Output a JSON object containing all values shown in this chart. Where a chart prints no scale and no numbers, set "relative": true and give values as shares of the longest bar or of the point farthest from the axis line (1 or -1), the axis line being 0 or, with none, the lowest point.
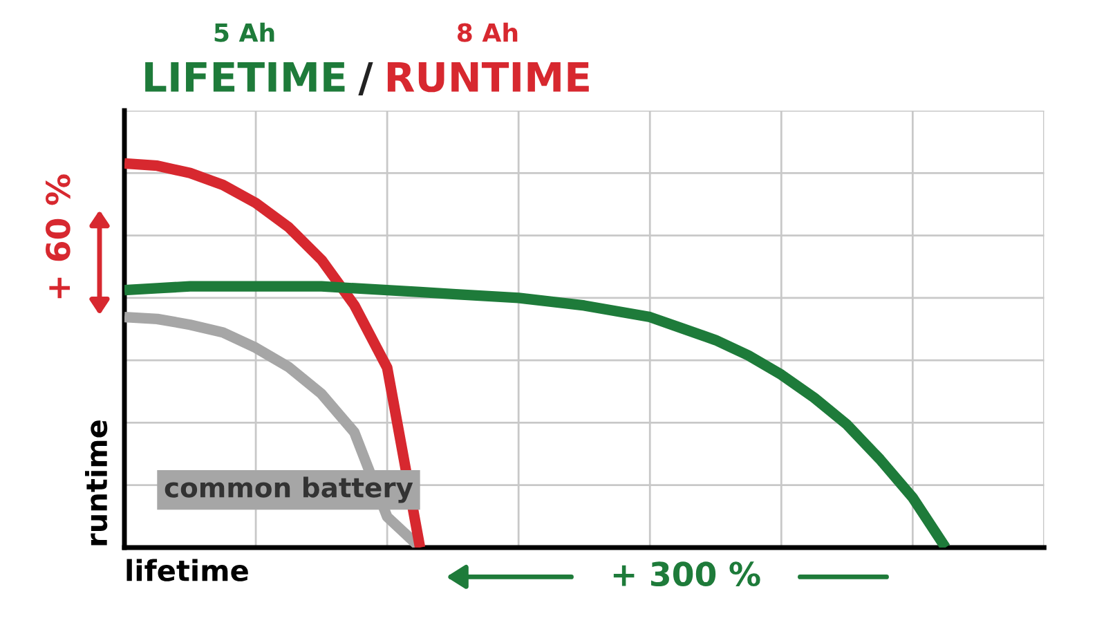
{
  "chart_data": {
    "type": "line",
    "relative": true,
    "title": "LIFETIME / RUNTIME",
    "xlabel": "lifetime",
    "ylabel": "runtime",
    "categories": [
      null,
      null,
      null,
      null,
      null,
      null,
      null,
      null,
      null,
      null,
      null,
      null,
      null,
      null,
      null,
      null,
      null,
      null,
      null,
      null,
      null,
      null,
      null,
      null,
      null,
      null,
      null,
      null,
      null
    ],
    "series": [
      {
        "name": "5 Ah",
        "color": "#1e7b3a",
        "values": [
          0.67,
          0.675,
          0.68,
          0.68,
          0.68,
          0.68,
          0.68,
          0.675,
          0.67,
          0.665,
          0.66,
          0.655,
          0.65,
          0.64,
          0.63,
          0.615,
          0.6,
          0.57,
          0.54,
          0.5,
          0.45,
          0.39,
          0.32,
          0.23,
          0.13,
          0.0,
          null,
          null,
          null
        ]
      },
      {
        "name": "8 Ah",
        "color": "#d7282f",
        "values": [
          1.0,
          0.994,
          0.975,
          0.944,
          0.897,
          0.834,
          0.749,
          0.631,
          0.468,
          0.0,
          null,
          null,
          null,
          null,
          null,
          null,
          null,
          null,
          null,
          null,
          null,
          null,
          null,
          null,
          null,
          null,
          null,
          null,
          null
        ]
      },
      {
        "name": "common battery",
        "color": "#a6a6a6",
        "values": [
          0.6,
          0.595,
          0.58,
          0.56,
          0.52,
          0.47,
          0.4,
          0.3,
          0.08,
          0.0,
          null,
          null,
          null,
          null,
          null,
          null,
          null,
          null,
          null,
          null,
          null,
          null,
          null,
          null,
          null,
          null,
          null,
          null,
          null
        ]
      }
    ],
    "annotations": [
      "+ 60 %",
      "+ 300 %"
    ],
    "grid": true,
    "marker": "none",
    "line_style": "solid"
  }
}
